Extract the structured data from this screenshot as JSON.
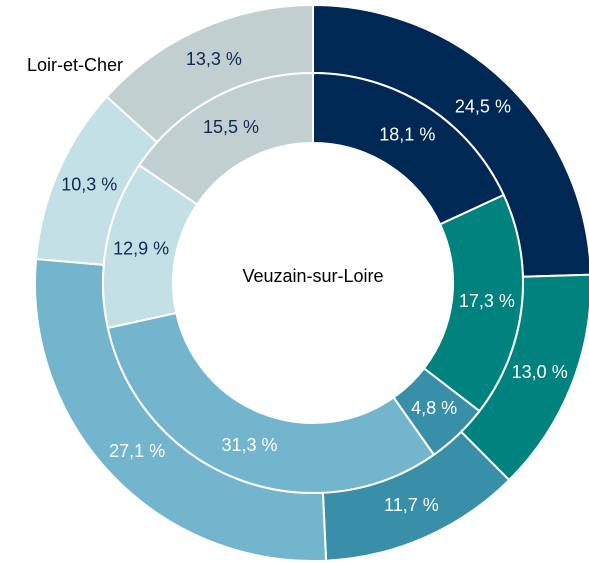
{
  "chart_data": {
    "type": "donut",
    "series": [
      {
        "name": "Loir-et-Cher",
        "ring": "outer",
        "values": [
          24.5,
          13.0,
          11.7,
          27.1,
          10.3,
          13.3
        ],
        "value_labels": [
          "24,5 %",
          "13,0 %",
          "11,7 %",
          "27,1 %",
          "10,3 %",
          "13,3 %"
        ]
      },
      {
        "name": "Veuzain-sur-Loire",
        "ring": "inner",
        "values": [
          18.1,
          17.3,
          4.8,
          31.3,
          12.9,
          15.5
        ],
        "value_labels": [
          "18,1 %",
          "17,3 %",
          "4,8 %",
          "31,3 %",
          "12,9 %",
          "15,5 %"
        ]
      }
    ],
    "colors": [
      "#002855",
      "#00827f",
      "#3a8fa8",
      "#72b5cc",
      "#c3e0e6",
      "#c1cfd0"
    ]
  }
}
